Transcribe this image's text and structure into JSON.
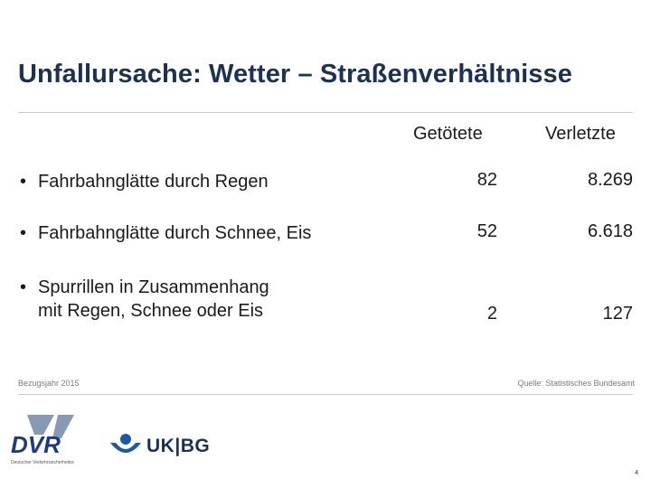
{
  "title": "Unfallursache: Wetter – Straßenverhältnisse",
  "columns": {
    "killed": "Getötete",
    "injured": "Verletzte"
  },
  "rows": [
    {
      "label": "Fahrbahnglätte durch Regen",
      "killed": "82",
      "injured": "8.269"
    },
    {
      "label": "Fahrbahnglätte durch Schnee, Eis",
      "killed": "52",
      "injured": "6.618"
    },
    {
      "label_line1": "Spurrillen in Zusammenhang",
      "label_line2": "mit Regen, Schnee oder Eis",
      "killed": "2",
      "injured": "127"
    }
  ],
  "footer": {
    "reference_year": "Bezugsjahr 2015",
    "source": "Quelle: Statistisches Bundesamt",
    "dvr_logo_text": "DVR",
    "dvr_subtitle": "Deutscher Verkehrssicherheitsrat",
    "ukbg_text": "UK|BG",
    "page_number": "4"
  },
  "colors": {
    "title": "#1c3153",
    "dvr_blue": "#1e3a78",
    "ukbg_blue": "#1c5aa6"
  }
}
